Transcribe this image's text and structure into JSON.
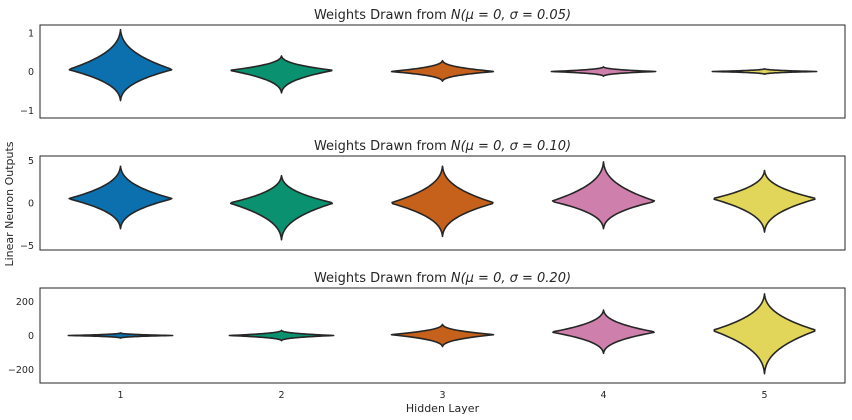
{
  "chart_data": {
    "type": "violin",
    "shared_x": {
      "label": "Hidden Layer",
      "categories": [
        "1",
        "2",
        "3",
        "4",
        "5"
      ]
    },
    "ylabel": "Linear Neuron Outputs",
    "colors": [
      "#0c6fae",
      "#0a9270",
      "#c5611a",
      "#cf7fac",
      "#e2d65a"
    ],
    "outline_color": "#262626",
    "grid": false,
    "panels": [
      {
        "title_prefix": "Weights Drawn from ",
        "title_math": "N(μ = 0, σ = 0.05)",
        "ylim": [
          -1.2,
          1.2
        ],
        "yticks": [
          -1,
          0,
          1
        ],
        "violins": [
          {
            "layer": "1",
            "min": -0.75,
            "max": 1.08,
            "center": 0.05,
            "half_width_max": 0.45
          },
          {
            "layer": "2",
            "min": -0.55,
            "max": 0.4,
            "center": 0.03,
            "half_width_max": 0.45
          },
          {
            "layer": "3",
            "min": -0.25,
            "max": 0.28,
            "center": 0.0,
            "half_width_max": 0.45
          },
          {
            "layer": "4",
            "min": -0.12,
            "max": 0.12,
            "center": 0.0,
            "half_width_max": 0.45
          },
          {
            "layer": "5",
            "min": -0.07,
            "max": 0.07,
            "center": 0.0,
            "half_width_max": 0.45
          }
        ]
      },
      {
        "title_prefix": "Weights Drawn from ",
        "title_math": "N(μ = 0, σ = 0.10)",
        "ylim": [
          -5.5,
          5.5
        ],
        "yticks": [
          -5,
          0,
          5
        ],
        "violins": [
          {
            "layer": "1",
            "min": -3.0,
            "max": 4.3,
            "center": 0.5,
            "half_width_max": 0.45
          },
          {
            "layer": "2",
            "min": -4.3,
            "max": 3.2,
            "center": 0.0,
            "half_width_max": 0.45
          },
          {
            "layer": "3",
            "min": -3.9,
            "max": 4.3,
            "center": 0.0,
            "half_width_max": 0.45
          },
          {
            "layer": "4",
            "min": -3.0,
            "max": 4.8,
            "center": 0.2,
            "half_width_max": 0.45
          },
          {
            "layer": "5",
            "min": -3.4,
            "max": 3.8,
            "center": 0.5,
            "half_width_max": 0.45
          }
        ]
      },
      {
        "title_prefix": "Weights Drawn from ",
        "title_math": "N(μ = 0, σ = 0.20)",
        "ylim": [
          -280,
          280
        ],
        "yticks": [
          -200,
          0,
          200
        ],
        "violins": [
          {
            "layer": "1",
            "min": -15,
            "max": 15,
            "center": 0,
            "half_width_max": 0.45
          },
          {
            "layer": "2",
            "min": -30,
            "max": 30,
            "center": 0,
            "half_width_max": 0.45
          },
          {
            "layer": "3",
            "min": -65,
            "max": 65,
            "center": 5,
            "half_width_max": 0.45
          },
          {
            "layer": "4",
            "min": -105,
            "max": 150,
            "center": 20,
            "half_width_max": 0.45
          },
          {
            "layer": "5",
            "min": -225,
            "max": 245,
            "center": 30,
            "half_width_max": 0.45
          }
        ]
      }
    ]
  }
}
